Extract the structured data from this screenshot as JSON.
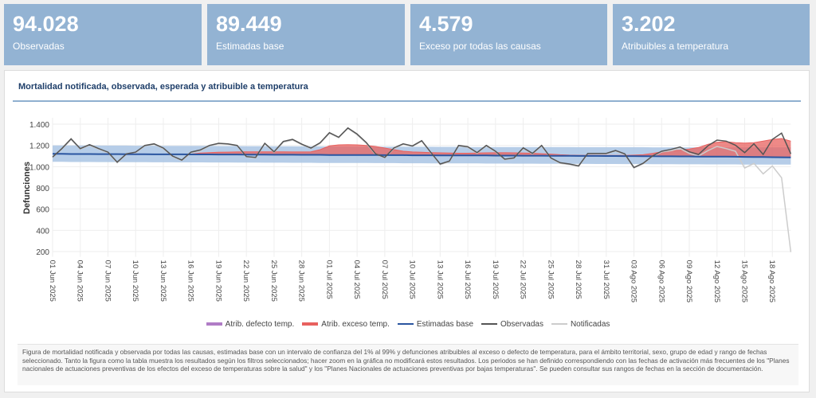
{
  "kpis": [
    {
      "value": "94.028",
      "label": "Observadas"
    },
    {
      "value": "89.449",
      "label": "Estimadas base"
    },
    {
      "value": "4.579",
      "label": "Exceso por todas las causas"
    },
    {
      "value": "3.202",
      "label": "Atribuibles a temperatura"
    }
  ],
  "panel": {
    "title": "Mortalidad notificada, observada, esperada y atribuible a temperatura",
    "note": "Figura de mortalidad notificada y observada por todas las causas, estimadas base con un intervalo de confianza del 1% al 99% y defunciones atribuibles al exceso o defecto de temperatura, para el ámbito territorial, sexo, grupo de edad y rango de fechas seleccionado. Tanto la figura como la tabla muestra los resultados según los filtros seleccionados; hacer zoom en la gráfica no modificará estos resultados. Los periodos se han definido correspondiendo con las fechas de activación más frecuentes de los \"Planes nacionales de actuaciones preventivas de los efectos del exceso de temperaturas sobre la salud\" y los \"Planes Nacionales de actuaciones preventivas por bajas temperaturas\". Se pueden consultar sus rangos de fechas en la sección de documentación."
  },
  "chart_data": {
    "type": "line",
    "ylabel": "Defunciones",
    "ylim": [
      150,
      1420
    ],
    "yticks": [
      "200",
      "400",
      "600",
      "800",
      "1.000",
      "1.200",
      "1.400"
    ],
    "ytick_values": [
      200,
      400,
      600,
      800,
      1000,
      1200,
      1400
    ],
    "grid": true,
    "legend_position": "bottom",
    "xtick_labels": [
      "01 Jun 2025",
      "04 Jun 2025",
      "07 Jun 2025",
      "10 Jun 2025",
      "13 Jun 2025",
      "16 Jun 2025",
      "19 Jun 2025",
      "22 Jun 2025",
      "25 Jun 2025",
      "28 Jun 2025",
      "01 Jul 2025",
      "04 Jul 2025",
      "07 Jul 2025",
      "10 Jul 2025",
      "13 Jul 2025",
      "16 Jul 2025",
      "19 Jul 2025",
      "22 Jul 2025",
      "25 Jul 2025",
      "28 Jul 2025",
      "31 Jul 2025",
      "03 Ago 2025",
      "06 Ago 2025",
      "09 Ago 2025",
      "12 Ago 2025",
      "15 Ago 2025",
      "18 Ago 2025"
    ],
    "x_range": [
      "2025-06-01",
      "2025-08-20"
    ],
    "series": [
      {
        "name": "Atrib. defecto temp.",
        "color": "#b07cc6",
        "values": []
      },
      {
        "name": "Atrib. exceso temp.",
        "color": "#e8615f",
        "values": [
          1120,
          1120,
          1119,
          1119,
          1119,
          1118,
          1118,
          1118,
          1117,
          1117,
          1117,
          1116,
          1116,
          1116,
          1116,
          1118,
          1128,
          1132,
          1135,
          1137,
          1138,
          1139,
          1140,
          1140,
          1140,
          1139,
          1138,
          1138,
          1140,
          1160,
          1195,
          1205,
          1207,
          1205,
          1200,
          1190,
          1175,
          1160,
          1145,
          1138,
          1135,
          1132,
          1130,
          1128,
          1126,
          1126,
          1128,
          1130,
          1131,
          1131,
          1130,
          1128,
          1126,
          1122,
          1118,
          1112,
          1108,
          1107,
          1107,
          1106,
          1106,
          1106,
          1106,
          1108,
          1112,
          1125,
          1140,
          1150,
          1155,
          1165,
          1180,
          1210,
          1230,
          1235,
          1225,
          1222,
          1225,
          1240,
          1255,
          1265,
          1240
        ]
      },
      {
        "name": "Estimadas base",
        "color": "#2a55a0",
        "values": [
          1120,
          1120,
          1119,
          1119,
          1119,
          1118,
          1118,
          1118,
          1117,
          1117,
          1117,
          1116,
          1116,
          1116,
          1116,
          1115,
          1115,
          1115,
          1114,
          1114,
          1114,
          1113,
          1113,
          1113,
          1112,
          1112,
          1112,
          1111,
          1111,
          1111,
          1110,
          1110,
          1110,
          1109,
          1109,
          1109,
          1108,
          1108,
          1108,
          1107,
          1107,
          1107,
          1106,
          1106,
          1106,
          1105,
          1105,
          1105,
          1104,
          1104,
          1104,
          1103,
          1103,
          1103,
          1102,
          1102,
          1102,
          1101,
          1101,
          1101,
          1100,
          1100,
          1099,
          1099,
          1098,
          1098,
          1097,
          1097,
          1096,
          1096,
          1095,
          1095,
          1094,
          1094,
          1093,
          1092,
          1091,
          1090,
          1089,
          1088,
          1087
        ],
        "band_low": [
          1045,
          1045,
          1044,
          1044,
          1044,
          1043,
          1043,
          1043,
          1042,
          1042,
          1042,
          1041,
          1041,
          1041,
          1040,
          1040,
          1040,
          1039,
          1039,
          1039,
          1038,
          1038,
          1038,
          1037,
          1037,
          1037,
          1036,
          1036,
          1036,
          1035,
          1035,
          1035,
          1034,
          1034,
          1034,
          1033,
          1033,
          1033,
          1032,
          1032,
          1032,
          1031,
          1031,
          1031,
          1030,
          1030,
          1030,
          1029,
          1029,
          1029,
          1028,
          1028,
          1028,
          1027,
          1027,
          1027,
          1026,
          1026,
          1026,
          1025,
          1025,
          1025,
          1024,
          1024,
          1024,
          1023,
          1023,
          1023,
          1022,
          1022,
          1022,
          1021,
          1021,
          1021,
          1021,
          1020,
          1020,
          1020,
          1020,
          1020,
          1020
        ],
        "band_high": [
          1200,
          1200,
          1200,
          1199,
          1199,
          1199,
          1198,
          1198,
          1198,
          1197,
          1197,
          1197,
          1196,
          1196,
          1196,
          1195,
          1195,
          1195,
          1194,
          1194,
          1194,
          1193,
          1193,
          1193,
          1192,
          1192,
          1192,
          1191,
          1191,
          1191,
          1190,
          1190,
          1190,
          1189,
          1189,
          1189,
          1188,
          1188,
          1188,
          1187,
          1187,
          1187,
          1186,
          1186,
          1186,
          1185,
          1185,
          1185,
          1185,
          1185,
          1185,
          1184,
          1184,
          1184,
          1184,
          1184,
          1184,
          1183,
          1183,
          1183,
          1183,
          1183,
          1183,
          1183,
          1183,
          1182,
          1182,
          1182,
          1182,
          1182,
          1182,
          1182,
          1182,
          1182,
          1182,
          1182,
          1182,
          1182,
          1182,
          1182,
          1182
        ]
      },
      {
        "name": "Observadas",
        "color": "#555555",
        "values": [
          1090,
          1170,
          1262,
          1170,
          1207,
          1170,
          1137,
          1042,
          1120,
          1137,
          1200,
          1215,
          1175,
          1100,
          1062,
          1137,
          1157,
          1200,
          1220,
          1215,
          1200,
          1095,
          1087,
          1220,
          1140,
          1237,
          1257,
          1212,
          1175,
          1225,
          1320,
          1277,
          1365,
          1307,
          1227,
          1120,
          1087,
          1177,
          1215,
          1195,
          1245,
          1132,
          1025,
          1052,
          1200,
          1187,
          1132,
          1200,
          1145,
          1070,
          1082,
          1177,
          1125,
          1200,
          1082,
          1037,
          1025,
          1007,
          1125,
          1125,
          1125,
          1152,
          1120,
          992,
          1032,
          1100,
          1145,
          1162,
          1185,
          1140,
          1115,
          1195,
          1250,
          1240,
          1202,
          1132,
          1215,
          1115,
          1257,
          1315,
          1120
        ]
      },
      {
        "name": "Notificadas",
        "color": "#cccccc",
        "values": [
          1085,
          1165,
          1255,
          1165,
          1200,
          1165,
          1130,
          1037,
          1115,
          1130,
          1195,
          1210,
          1170,
          1095,
          1057,
          1130,
          1150,
          1195,
          1215,
          1210,
          1195,
          1090,
          1082,
          1215,
          1135,
          1230,
          1250,
          1207,
          1170,
          1220,
          1315,
          1272,
          1360,
          1300,
          1220,
          1115,
          1082,
          1172,
          1210,
          1190,
          1240,
          1127,
          1020,
          1047,
          1195,
          1182,
          1127,
          1195,
          1140,
          1065,
          1077,
          1172,
          1120,
          1195,
          1077,
          1032,
          1020,
          1002,
          1120,
          1120,
          1120,
          1147,
          1115,
          987,
          1027,
          1095,
          1138,
          1150,
          1170,
          1125,
          1100,
          1150,
          1190,
          1170,
          1145,
          987,
          1030,
          932,
          1007,
          895,
          195
        ]
      }
    ]
  }
}
